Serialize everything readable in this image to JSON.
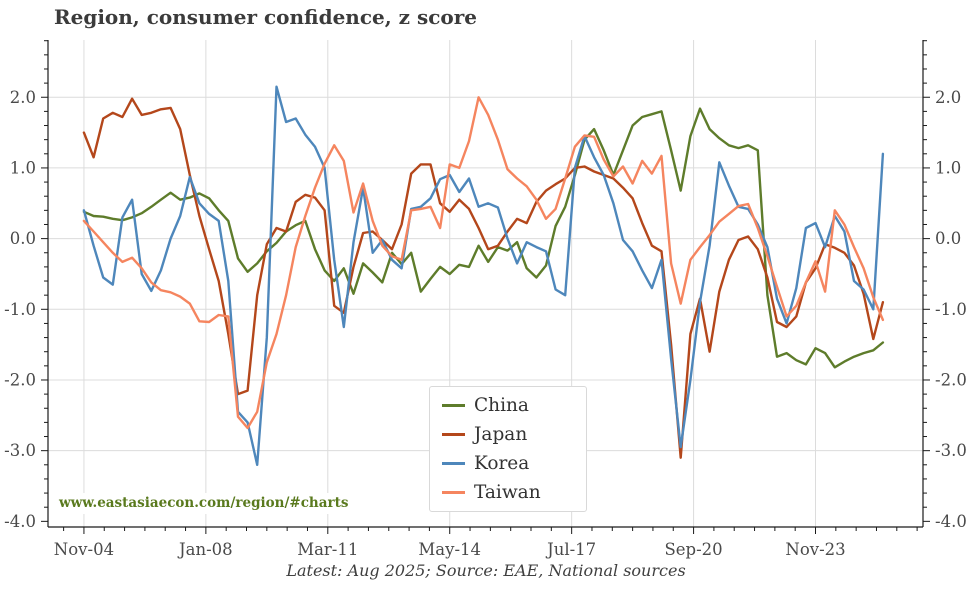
{
  "chart_data": {
    "type": "line",
    "title": "Region, consumer confidence, z score",
    "caption": "Latest: Aug 2025; Source: EAE, National sources",
    "watermark": "www.eastasiaecon.com/region/#charts",
    "xlabel": "",
    "ylabel": "z score",
    "x_unit": "months since Nov-2004",
    "x_tick_labels": [
      "Nov-04",
      "Jan-08",
      "Mar-11",
      "May-14",
      "Jul-17",
      "Sep-20",
      "Nov-23"
    ],
    "x_tick_months": [
      0,
      38,
      76,
      114,
      152,
      190,
      228
    ],
    "y_ticks": [
      2,
      1,
      0,
      -1,
      -2,
      -3,
      -4
    ],
    "y_gridlines": [
      2,
      1,
      0,
      -1,
      -2,
      -3
    ],
    "ylim": [
      -4.08,
      2.81
    ],
    "xlim_months": [
      -11.2,
      261.5
    ],
    "grid": true,
    "legend_position": "lower center",
    "latest_label": "Aug 2025",
    "months": [
      0,
      3,
      6,
      9,
      12,
      15,
      18,
      21,
      24,
      27,
      30,
      33,
      36,
      39,
      42,
      45,
      48,
      51,
      54,
      57,
      60,
      63,
      66,
      69,
      72,
      75,
      78,
      81,
      84,
      87,
      90,
      93,
      96,
      99,
      102,
      105,
      108,
      111,
      114,
      117,
      120,
      123,
      126,
      129,
      132,
      135,
      138,
      141,
      144,
      147,
      150,
      153,
      156,
      159,
      162,
      165,
      168,
      171,
      174,
      177,
      180,
      183,
      186,
      189,
      192,
      195,
      198,
      201,
      204,
      207,
      210,
      213,
      216,
      219,
      222,
      225,
      228,
      231,
      234,
      237,
      240,
      243,
      246,
      249
    ],
    "series": [
      {
        "name": "China",
        "color": "#5e7c2b",
        "values": [
          0.38,
          0.32,
          0.31,
          0.28,
          0.26,
          0.3,
          0.36,
          0.45,
          0.55,
          0.65,
          0.55,
          0.58,
          0.64,
          0.57,
          0.4,
          0.25,
          -0.28,
          -0.47,
          -0.35,
          -0.18,
          -0.06,
          0.1,
          0.19,
          0.25,
          -0.15,
          -0.45,
          -0.6,
          -0.42,
          -0.78,
          -0.35,
          -0.48,
          -0.62,
          -0.2,
          -0.36,
          -0.2,
          -0.75,
          -0.57,
          -0.4,
          -0.5,
          -0.37,
          -0.4,
          -0.1,
          -0.33,
          -0.12,
          -0.17,
          -0.05,
          -0.42,
          -0.55,
          -0.38,
          0.18,
          0.45,
          0.9,
          1.4,
          1.55,
          1.25,
          0.9,
          1.25,
          1.6,
          1.72,
          1.76,
          1.8,
          1.25,
          0.68,
          1.45,
          1.84,
          1.55,
          1.42,
          1.32,
          1.28,
          1.32,
          1.25,
          -0.8,
          -1.67,
          -1.62,
          -1.72,
          -1.78,
          -1.55,
          -1.62,
          -1.82,
          -1.74,
          -1.67,
          -1.62,
          -1.58,
          -1.47
        ]
      },
      {
        "name": "Japan",
        "color": "#b4471b",
        "values": [
          1.5,
          1.15,
          1.7,
          1.78,
          1.72,
          1.98,
          1.75,
          1.78,
          1.83,
          1.85,
          1.55,
          0.9,
          0.32,
          -0.15,
          -0.6,
          -1.35,
          -2.2,
          -2.15,
          -0.8,
          -0.08,
          0.15,
          0.1,
          0.52,
          0.62,
          0.58,
          0.4,
          -0.95,
          -1.05,
          -0.4,
          0.08,
          0.1,
          -0.02,
          -0.15,
          0.2,
          0.92,
          1.05,
          1.05,
          0.5,
          0.38,
          0.55,
          0.42,
          0.15,
          -0.15,
          -0.1,
          0.1,
          0.28,
          0.22,
          0.52,
          0.68,
          0.77,
          0.85,
          1.0,
          1.02,
          0.95,
          0.9,
          0.85,
          0.72,
          0.57,
          0.22,
          -0.1,
          -0.18,
          -1.5,
          -3.1,
          -1.35,
          -0.85,
          -1.6,
          -0.75,
          -0.3,
          -0.02,
          0.03,
          -0.15,
          -0.55,
          -1.18,
          -1.25,
          -1.1,
          -0.62,
          -0.42,
          -0.08,
          -0.13,
          -0.2,
          -0.38,
          -0.78,
          -1.42,
          -0.9
        ]
      },
      {
        "name": "Korea",
        "color": "#4e87bb",
        "values": [
          0.4,
          -0.1,
          -0.55,
          -0.65,
          0.3,
          0.55,
          -0.5,
          -0.74,
          -0.45,
          0.0,
          0.32,
          0.87,
          0.5,
          0.35,
          0.25,
          -0.6,
          -2.45,
          -2.6,
          -3.2,
          -1.4,
          2.15,
          1.65,
          1.7,
          1.47,
          1.3,
          1.0,
          -0.3,
          -1.25,
          -0.05,
          0.72,
          -0.2,
          -0.02,
          -0.3,
          -0.42,
          0.42,
          0.45,
          0.57,
          0.84,
          0.9,
          0.66,
          0.85,
          0.45,
          0.5,
          0.44,
          0.0,
          -0.35,
          -0.05,
          -0.12,
          -0.18,
          -0.72,
          -0.8,
          1.0,
          1.45,
          1.15,
          0.9,
          0.5,
          -0.02,
          -0.18,
          -0.45,
          -0.7,
          -0.3,
          -1.7,
          -2.95,
          -2.0,
          -0.9,
          -0.1,
          1.08,
          0.75,
          0.45,
          0.42,
          0.2,
          -0.12,
          -0.85,
          -1.2,
          -0.7,
          0.15,
          0.22,
          -0.12,
          0.32,
          0.1,
          -0.6,
          -0.72,
          -1.0,
          1.2
        ]
      },
      {
        "name": "Taiwan",
        "color": "#f5855f",
        "values": [
          0.25,
          0.1,
          -0.05,
          -0.2,
          -0.33,
          -0.27,
          -0.42,
          -0.62,
          -0.73,
          -0.76,
          -0.82,
          -0.92,
          -1.17,
          -1.18,
          -1.08,
          -1.1,
          -2.52,
          -2.68,
          -2.45,
          -1.75,
          -1.35,
          -0.8,
          -0.12,
          0.32,
          0.72,
          1.06,
          1.32,
          1.1,
          0.37,
          0.78,
          0.25,
          -0.1,
          -0.25,
          -0.3,
          0.4,
          0.42,
          0.45,
          0.15,
          1.05,
          1.0,
          1.38,
          2.0,
          1.75,
          1.4,
          0.98,
          0.85,
          0.74,
          0.55,
          0.28,
          0.42,
          0.85,
          1.3,
          1.46,
          1.44,
          1.12,
          0.88,
          1.02,
          0.78,
          1.1,
          0.92,
          1.17,
          -0.35,
          -0.92,
          -0.3,
          -0.12,
          0.05,
          0.24,
          0.35,
          0.46,
          0.49,
          0.15,
          -0.25,
          -0.68,
          -1.1,
          -0.95,
          -0.62,
          -0.32,
          -0.75,
          0.4,
          0.2,
          -0.12,
          -0.42,
          -0.83,
          -1.15
        ]
      }
    ],
    "style": {
      "grid_color": "#dcdcdc",
      "spine_color": "#1a1a1a",
      "tick_label_color": "#4a4a4a",
      "line_width": 2.4
    }
  }
}
